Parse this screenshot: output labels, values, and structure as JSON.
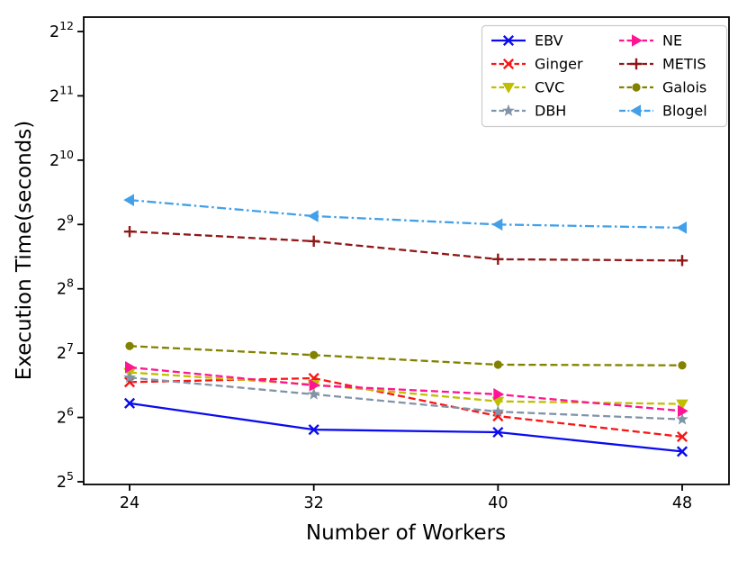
{
  "chart_data": {
    "type": "line",
    "title": "",
    "xlabel": "Number of Workers",
    "ylabel": "Execution Time(seconds)",
    "x": [
      24,
      32,
      40,
      48
    ],
    "x_tick_labels": [
      "24",
      "32",
      "40",
      "48"
    ],
    "y_axis": {
      "scale": "log2",
      "tick_label_base": "2",
      "tick_exponents": [
        5,
        6,
        7,
        8,
        9,
        10,
        11,
        12
      ]
    },
    "ylim_log2": [
      4.95,
      12.25
    ],
    "grid": false,
    "legend": {
      "position": "top-right",
      "columns": 2,
      "border_color": "#cccccc",
      "background": "#ffffff"
    },
    "series": [
      {
        "name": "EBV",
        "color": "#0b0bef",
        "linestyle": "solid",
        "marker": "x",
        "log2_values": [
          6.22,
          5.81,
          5.77,
          5.47
        ]
      },
      {
        "name": "Ginger",
        "color": "#fa1414",
        "linestyle": "dashed",
        "marker": "x",
        "log2_values": [
          6.55,
          6.61,
          6.02,
          5.7
        ]
      },
      {
        "name": "CVC",
        "color": "#bfbf00",
        "linestyle": "dashed",
        "marker": "triangle-down",
        "log2_values": [
          6.7,
          6.51,
          6.25,
          6.21
        ]
      },
      {
        "name": "DBH",
        "color": "#8193a7",
        "linestyle": "dashed",
        "marker": "star",
        "log2_values": [
          6.62,
          6.36,
          6.09,
          5.97
        ]
      },
      {
        "name": "NE",
        "color": "#ff1493",
        "linestyle": "dashed",
        "marker": "triangle-right",
        "log2_values": [
          6.78,
          6.5,
          6.36,
          6.1
        ]
      },
      {
        "name": "METIS",
        "color": "#8f1717",
        "linestyle": "dashed",
        "marker": "plus",
        "log2_values": [
          8.89,
          8.74,
          8.46,
          8.44
        ]
      },
      {
        "name": "Galois",
        "color": "#828200",
        "linestyle": "dashed",
        "marker": "circle",
        "log2_values": [
          7.11,
          6.97,
          6.82,
          6.81
        ]
      },
      {
        "name": "Blogel",
        "color": "#42a0e8",
        "linestyle": "dashdot",
        "marker": "triangle-left",
        "log2_values": [
          9.38,
          9.13,
          9.0,
          8.95
        ]
      }
    ]
  }
}
